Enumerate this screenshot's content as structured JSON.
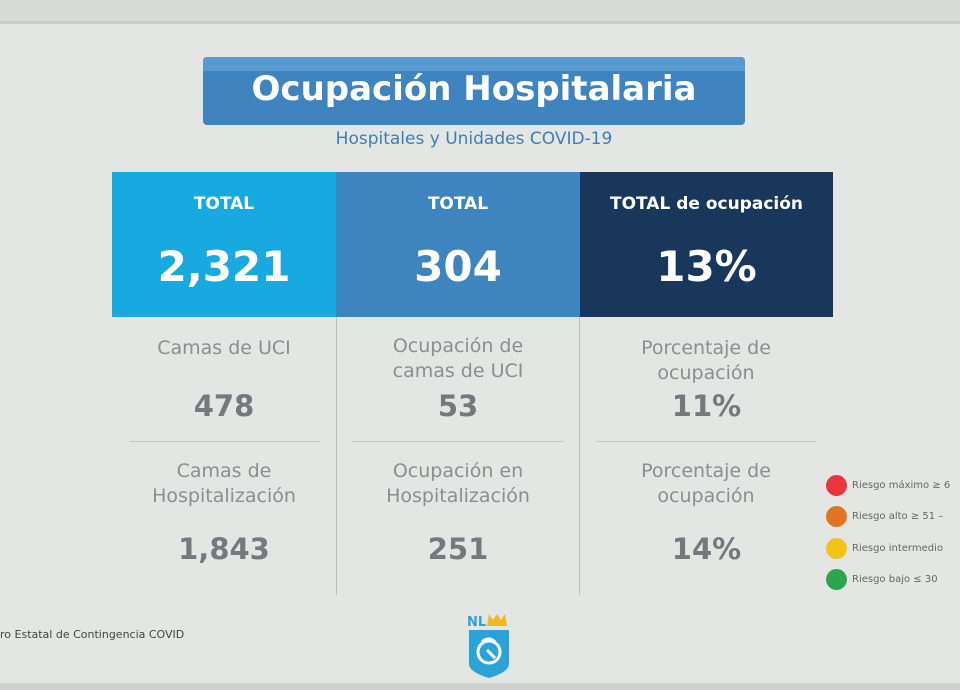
{
  "header": {
    "title": "Ocupación Hospitalaria",
    "subtitle": "Hospitales y Unidades COVID-19"
  },
  "totals": [
    {
      "label": "TOTAL",
      "value": "2,321",
      "color": "#17a9e0"
    },
    {
      "label": "TOTAL",
      "value": "304",
      "color": "#3e85bf"
    },
    {
      "label": "TOTAL de ocupación",
      "value": "13%",
      "color": "#18375a"
    }
  ],
  "uci_row": [
    {
      "label": "Camas de UCI",
      "value": "478"
    },
    {
      "label": "Ocupación de camas de UCI",
      "value": "53"
    },
    {
      "label": "Porcentaje de ocupación",
      "value": "11%"
    }
  ],
  "hosp_row": [
    {
      "label": "Camas de Hospitalización",
      "value": "1,843"
    },
    {
      "label": "Ocupación en Hospitalización",
      "value": "251"
    },
    {
      "label": "Porcentaje de ocupación",
      "value": "14%"
    }
  ],
  "legend": [
    {
      "label": "Riesgo máximo ≥ 6",
      "color": "#e8363c"
    },
    {
      "label": "Riesgo alto ≥ 51 –",
      "color": "#e07420"
    },
    {
      "label": "Riesgo intermedio",
      "color": "#f2c318"
    },
    {
      "label": "Riesgo bajo ≤ 30",
      "color": "#2aa64c"
    }
  ],
  "footer": {
    "text": "ro Estatal de Contingencia COVID",
    "logo_text": "NL"
  }
}
